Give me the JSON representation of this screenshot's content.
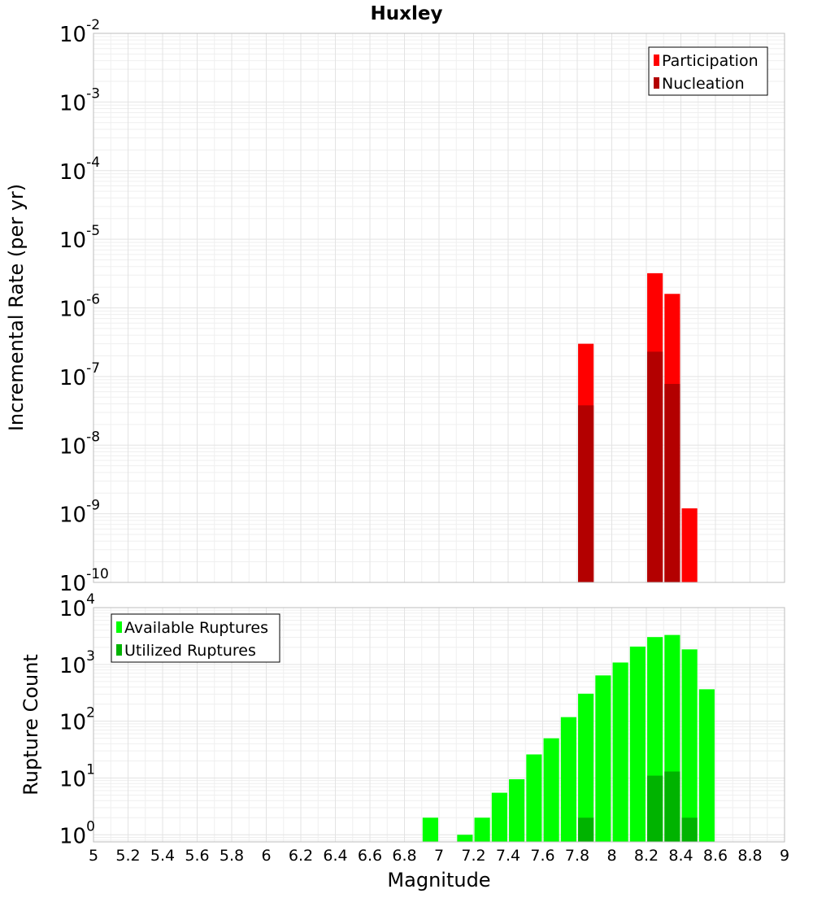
{
  "chart_data": [
    {
      "type": "bar",
      "title": "Huxley",
      "ylabel": "Incremental Rate (per yr)",
      "xlabel": "",
      "x_range": [
        5,
        9
      ],
      "y_scale": "log",
      "ylim": [
        1e-10,
        0.01
      ],
      "y_ticks": [
        {
          "base": "10",
          "exp": "-2",
          "value": 0.01
        },
        {
          "base": "10",
          "exp": "-3",
          "value": 0.001
        },
        {
          "base": "10",
          "exp": "-4",
          "value": 0.0001
        },
        {
          "base": "10",
          "exp": "-5",
          "value": 1e-05
        },
        {
          "base": "10",
          "exp": "-6",
          "value": 1e-06
        },
        {
          "base": "10",
          "exp": "-7",
          "value": 1e-07
        },
        {
          "base": "10",
          "exp": "-8",
          "value": 1e-08
        },
        {
          "base": "10",
          "exp": "-9",
          "value": 1e-09
        },
        {
          "base": "10",
          "exp": "-10",
          "value": 1e-10
        }
      ],
      "grid": true,
      "legend_position": "top-right",
      "series": [
        {
          "name": "Participation",
          "color": "#ff0000",
          "points": [
            {
              "x": 7.85,
              "y": 3e-07
            },
            {
              "x": 8.25,
              "y": 3.2e-06
            },
            {
              "x": 8.35,
              "y": 1.6e-06
            },
            {
              "x": 8.45,
              "y": 1.2e-09
            }
          ]
        },
        {
          "name": "Nucleation",
          "color": "#b30000",
          "points": [
            {
              "x": 7.85,
              "y": 3.8e-08
            },
            {
              "x": 8.25,
              "y": 2.3e-07
            },
            {
              "x": 8.35,
              "y": 7.8e-08
            }
          ]
        }
      ]
    },
    {
      "type": "bar",
      "title": "",
      "ylabel": "Rupture Count",
      "xlabel": "Magnitude",
      "x_range": [
        5,
        9
      ],
      "x_ticks": [
        "5",
        "5.2",
        "5.4",
        "5.6",
        "5.8",
        "6",
        "6.2",
        "6.4",
        "6.6",
        "6.8",
        "7",
        "7.2",
        "7.4",
        "7.6",
        "7.8",
        "8",
        "8.2",
        "8.4",
        "8.6",
        "8.8",
        "9"
      ],
      "y_scale": "log",
      "ylim": [
        0.75,
        10000
      ],
      "y_ticks": [
        {
          "base": "10",
          "exp": "4",
          "value": 10000
        },
        {
          "base": "10",
          "exp": "3",
          "value": 1000
        },
        {
          "base": "10",
          "exp": "2",
          "value": 100
        },
        {
          "base": "10",
          "exp": "1",
          "value": 10
        },
        {
          "base": "10",
          "exp": "0",
          "value": 1
        }
      ],
      "grid": true,
      "legend_position": "top-left",
      "series": [
        {
          "name": "Available Ruptures",
          "color": "#00ff00",
          "points": [
            {
              "x": 6.95,
              "y": 2
            },
            {
              "x": 7.15,
              "y": 1
            },
            {
              "x": 7.25,
              "y": 2
            },
            {
              "x": 7.35,
              "y": 5.5
            },
            {
              "x": 7.45,
              "y": 9.5
            },
            {
              "x": 7.55,
              "y": 26
            },
            {
              "x": 7.65,
              "y": 50
            },
            {
              "x": 7.75,
              "y": 118
            },
            {
              "x": 7.85,
              "y": 305
            },
            {
              "x": 7.95,
              "y": 640
            },
            {
              "x": 8.05,
              "y": 1080
            },
            {
              "x": 8.15,
              "y": 2060
            },
            {
              "x": 8.25,
              "y": 3030
            },
            {
              "x": 8.35,
              "y": 3300
            },
            {
              "x": 8.45,
              "y": 1840
            },
            {
              "x": 8.55,
              "y": 365
            }
          ]
        },
        {
          "name": "Utilized Ruptures",
          "color": "#00b300",
          "points": [
            {
              "x": 7.85,
              "y": 2
            },
            {
              "x": 8.25,
              "y": 11
            },
            {
              "x": 8.35,
              "y": 13
            },
            {
              "x": 8.45,
              "y": 2
            }
          ]
        }
      ]
    }
  ]
}
